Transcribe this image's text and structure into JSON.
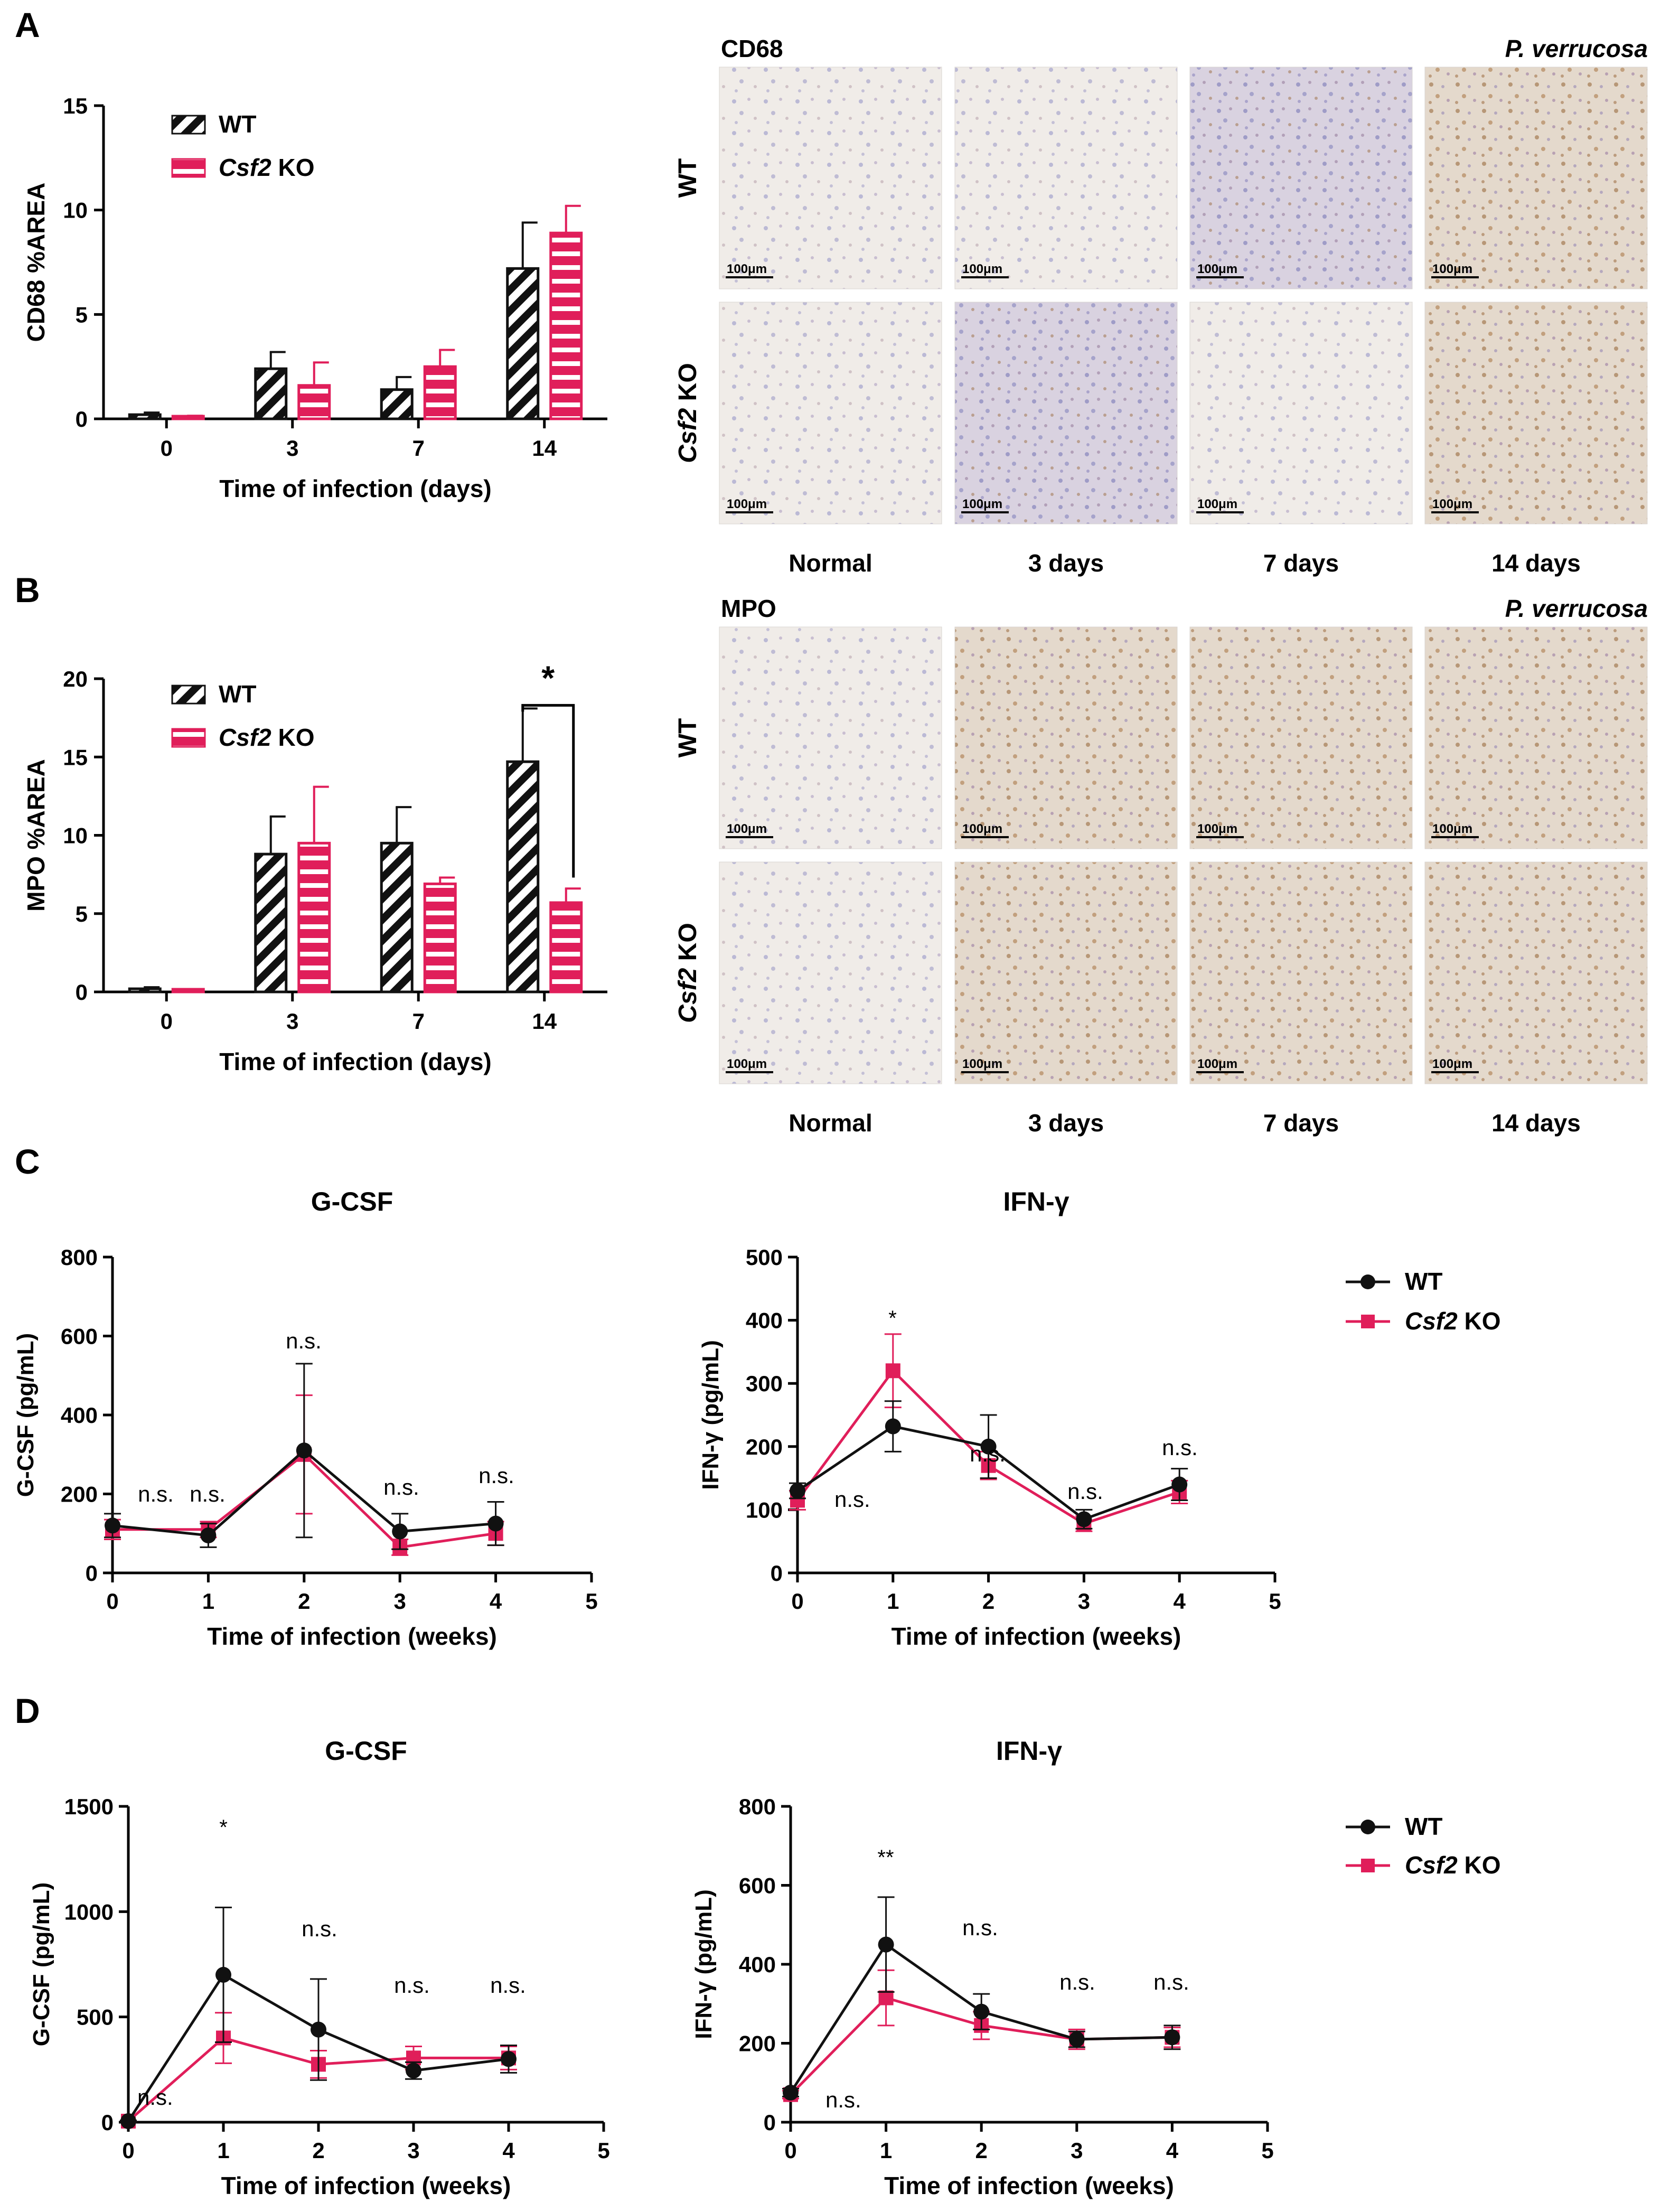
{
  "panels": {
    "A": "A",
    "B": "B",
    "C": "C",
    "D": "D"
  },
  "legend": {
    "wt": "WT",
    "ko_italic": "Csf2",
    "ko_rest": " KO"
  },
  "micrographs": {
    "cd68": {
      "stain": "CD68",
      "organism": "P. verrucosa",
      "rows": [
        "WT",
        "Csf2 KO"
      ],
      "columns": [
        "Normal",
        "3 days",
        "7 days",
        "14 days"
      ],
      "scalebar": "100μm"
    },
    "mpo": {
      "stain": "MPO",
      "organism": "P. verrucosa",
      "rows": [
        "WT",
        "Csf2 KO"
      ],
      "columns": [
        "Normal",
        "3 days",
        "7 days",
        "14 days"
      ],
      "scalebar": "100μm"
    }
  },
  "colors": {
    "wt": "#111111",
    "ko": "#e01e5a",
    "tissue_bg": "#f1eee9"
  },
  "chart_data": [
    {
      "id": "A",
      "type": "bar",
      "ylabel": "CD68 %AREA",
      "xlabel": "Time of infection (days)",
      "categories": [
        "0",
        "3",
        "7",
        "14"
      ],
      "ylim": [
        0,
        15
      ],
      "yticks": [
        0,
        5,
        10,
        15
      ],
      "series": [
        {
          "name": "WT",
          "values": [
            0.2,
            2.4,
            1.4,
            7.2
          ],
          "errors": [
            0.1,
            0.8,
            0.6,
            2.2
          ]
        },
        {
          "name": "Csf2 KO",
          "values": [
            0.1,
            1.6,
            2.5,
            8.9
          ],
          "errors": [
            0.05,
            1.1,
            0.8,
            1.3
          ]
        }
      ]
    },
    {
      "id": "B",
      "type": "bar",
      "ylabel": "MPO %AREA",
      "xlabel": "Time of infection (days)",
      "categories": [
        "0",
        "3",
        "7",
        "14"
      ],
      "ylim": [
        0,
        20
      ],
      "yticks": [
        0,
        5,
        10,
        15,
        20
      ],
      "series": [
        {
          "name": "WT",
          "values": [
            0.2,
            8.8,
            9.5,
            14.7
          ],
          "errors": [
            0.1,
            2.4,
            2.3,
            3.4
          ]
        },
        {
          "name": "Csf2 KO",
          "values": [
            0.1,
            9.5,
            6.9,
            5.7
          ],
          "errors": [
            0.05,
            3.6,
            0.4,
            0.9
          ]
        }
      ],
      "significance": "*"
    },
    {
      "id": "C-GCSF",
      "type": "line",
      "title": "G-CSF",
      "ylabel": "G-CSF (pg/mL)",
      "xlabel": "Time of infection (weeks)",
      "x": [
        0,
        1,
        2,
        3,
        4
      ],
      "xlim": [
        0,
        5
      ],
      "xticks": [
        0,
        1,
        2,
        3,
        4,
        5
      ],
      "ylim": [
        0,
        800
      ],
      "yticks": [
        0,
        200,
        400,
        600,
        800
      ],
      "series": [
        {
          "name": "WT",
          "values": [
            120,
            95,
            310,
            105,
            125
          ],
          "errors": [
            30,
            30,
            220,
            45,
            55
          ]
        },
        {
          "name": "Csf2 KO",
          "values": [
            110,
            110,
            300,
            65,
            100
          ],
          "errors": [
            25,
            20,
            150,
            20,
            30
          ]
        }
      ],
      "annotations": [
        "n.s.",
        "n.s.",
        "n.s.",
        "n.s.",
        "n.s."
      ]
    },
    {
      "id": "C-IFNg",
      "type": "line",
      "title": "IFN-γ",
      "ylabel": "IFN-γ (pg/mL)",
      "xlabel": "Time of infection (weeks)",
      "x": [
        0,
        1,
        2,
        3,
        4
      ],
      "xlim": [
        0,
        5
      ],
      "xticks": [
        0,
        1,
        2,
        3,
        4,
        5
      ],
      "ylim": [
        0,
        500
      ],
      "yticks": [
        0,
        100,
        200,
        300,
        400,
        500
      ],
      "series": [
        {
          "name": "WT",
          "values": [
            130,
            232,
            200,
            85,
            140
          ],
          "errors": [
            12,
            40,
            50,
            15,
            25
          ]
        },
        {
          "name": "Csf2 KO",
          "values": [
            115,
            320,
            170,
            78,
            128
          ],
          "errors": [
            15,
            58,
            22,
            12,
            18
          ]
        }
      ],
      "annotations": [
        "n.s.",
        "*",
        "n.s.",
        "n.s.",
        "n.s."
      ]
    },
    {
      "id": "D-GCSF",
      "type": "line",
      "title": "G-CSF",
      "ylabel": "G-CSF (pg/mL)",
      "xlabel": "Time of infection (weeks)",
      "x": [
        0,
        1,
        2,
        3,
        4
      ],
      "xlim": [
        0,
        5
      ],
      "xticks": [
        0,
        1,
        2,
        3,
        4,
        5
      ],
      "ylim": [
        0,
        1500
      ],
      "yticks": [
        0,
        500,
        1000,
        1500
      ],
      "series": [
        {
          "name": "WT",
          "values": [
            5,
            700,
            440,
            245,
            300
          ],
          "errors": [
            3,
            320,
            240,
            40,
            65
          ]
        },
        {
          "name": "Csf2 KO",
          "values": [
            5,
            400,
            275,
            305,
            305
          ],
          "errors": [
            3,
            120,
            65,
            55,
            55
          ]
        }
      ],
      "annotations": [
        "n.s.",
        "*",
        "n.s.",
        "n.s.",
        "n.s."
      ]
    },
    {
      "id": "D-IFNg",
      "type": "line",
      "title": "IFN-γ",
      "ylabel": "IFN-γ (pg/mL)",
      "xlabel": "Time of infection (weeks)",
      "x": [
        0,
        1,
        2,
        3,
        4
      ],
      "xlim": [
        0,
        5
      ],
      "xticks": [
        0,
        1,
        2,
        3,
        4,
        5
      ],
      "ylim": [
        0,
        800
      ],
      "yticks": [
        0,
        200,
        400,
        600,
        800
      ],
      "series": [
        {
          "name": "WT",
          "values": [
            75,
            450,
            280,
            210,
            215
          ],
          "errors": [
            10,
            120,
            45,
            20,
            30
          ]
        },
        {
          "name": "Csf2 KO",
          "values": [
            70,
            315,
            245,
            210,
            215
          ],
          "errors": [
            10,
            70,
            35,
            25,
            25
          ]
        }
      ],
      "annotations": [
        "n.s.",
        "**",
        "n.s.",
        "n.s.",
        "n.s."
      ]
    }
  ]
}
